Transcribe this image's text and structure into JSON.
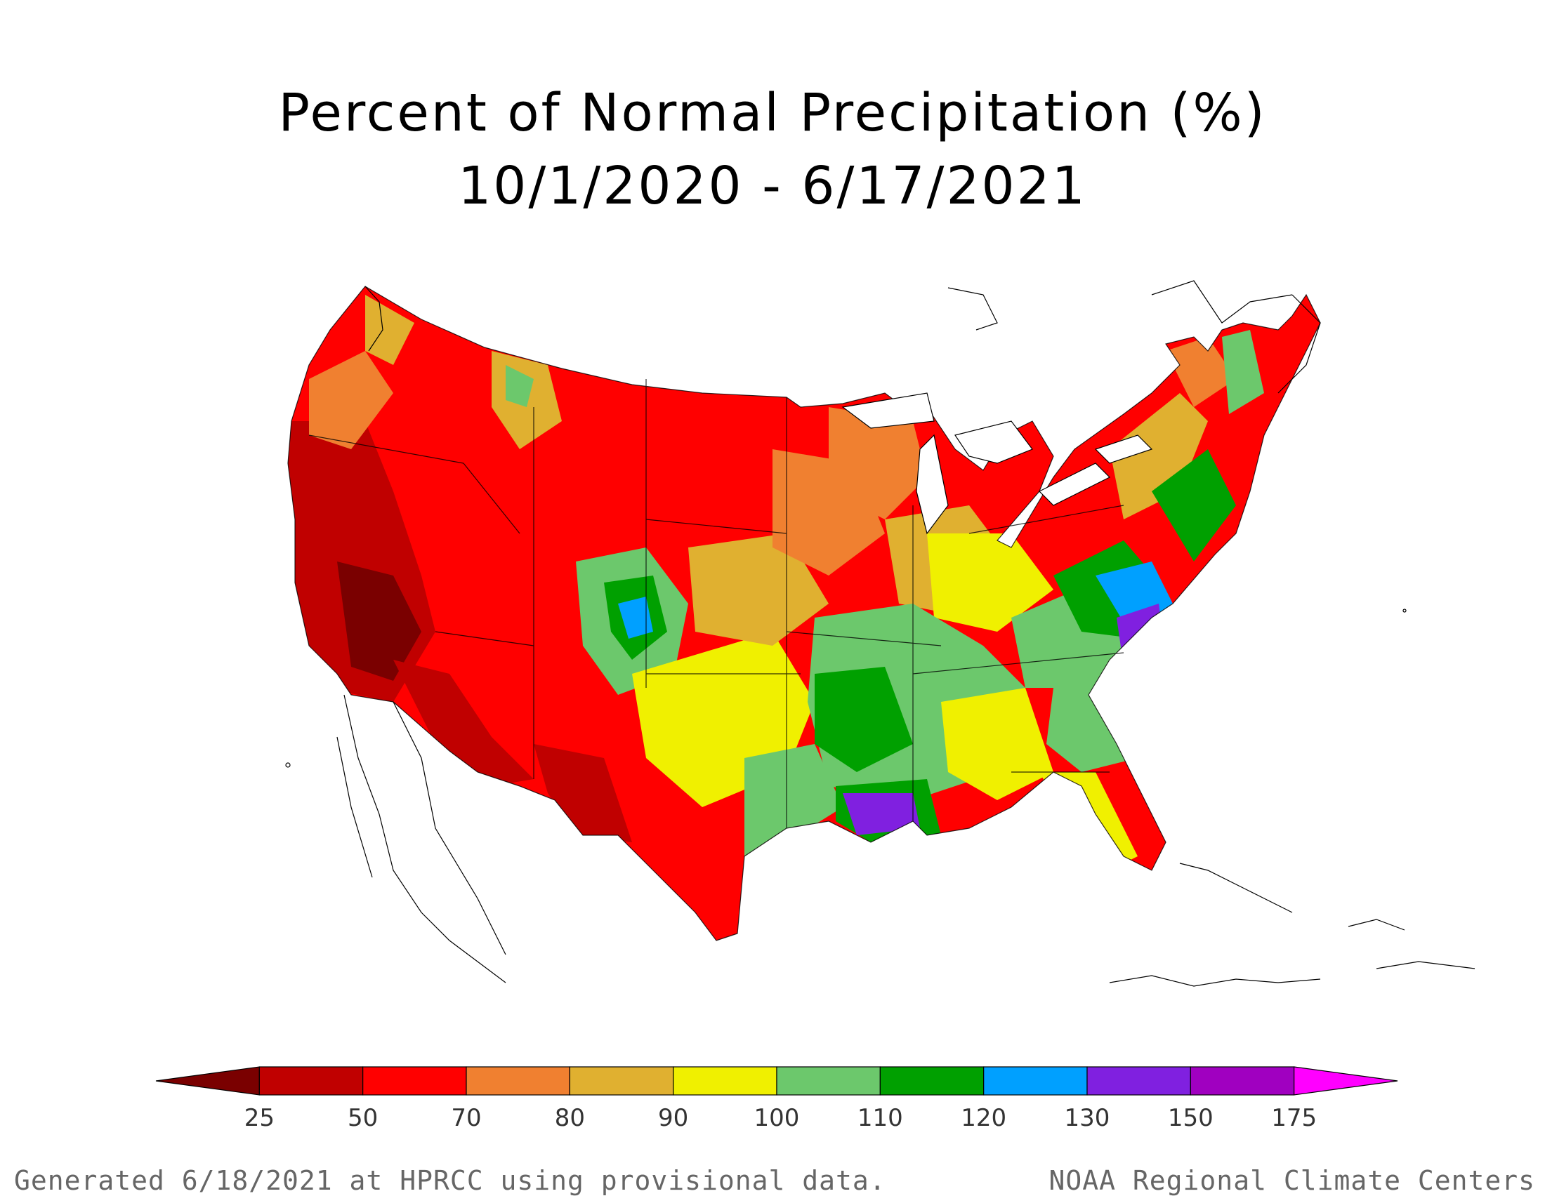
{
  "title": {
    "line1": "Percent of Normal Precipitation (%)",
    "line2": "10/1/2020 - 6/17/2021"
  },
  "legend": {
    "breaks": [
      "25",
      "50",
      "70",
      "80",
      "90",
      "100",
      "110",
      "120",
      "130",
      "150",
      "175"
    ],
    "colors": [
      "#7a0000",
      "#c00000",
      "#ff0000",
      "#f08030",
      "#e0b030",
      "#f0f000",
      "#6cc86c",
      "#00a000",
      "#00a0ff",
      "#8020e0",
      "#a000c0",
      "#ff00ff"
    ]
  },
  "footer": {
    "left": "Generated 6/18/2021 at HPRCC using provisional data.",
    "right": "NOAA Regional Climate Centers"
  }
}
